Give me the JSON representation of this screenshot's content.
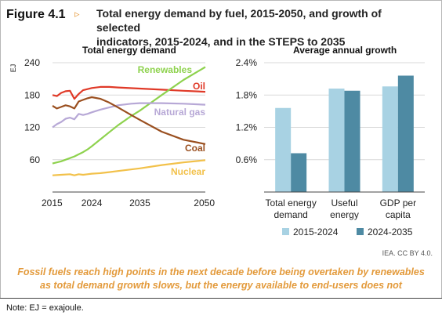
{
  "figure": {
    "label": "Figure 4.1",
    "arrow": "▹",
    "title_line1": "Total energy demand by fuel, 2015-2050, and growth of selected",
    "title_line2": "indicators, 2015-2024, and in the STEPS to 2035"
  },
  "caption": {
    "line1": "Fossil fuels reach high points in the next decade before being overtaken by renewables",
    "line2": "as total demand growth slows, but the energy available to end-users does not"
  },
  "credit": "IEA. CC BY 4.0.",
  "note": "Note: EJ = exajoule.",
  "colors": {
    "oil": "#e03a28",
    "coal": "#9a4f1f",
    "natural_gas": "#b7a8d6",
    "renewables": "#8ed24e",
    "nuclear": "#f2c14a",
    "bar_2015_2024": "#a8d2e3",
    "bar_2024_2035": "#4e8aa3",
    "grid": "#d9d9d9"
  },
  "chart_data": [
    {
      "type": "line",
      "title": "Total energy demand",
      "ylabel": "EJ",
      "xlim": [
        2015,
        2050
      ],
      "ylim": [
        0,
        240
      ],
      "x_ticks": [
        2015,
        2024,
        2035,
        2050
      ],
      "y_ticks": [
        60,
        120,
        180,
        240
      ],
      "grid": true,
      "series": [
        {
          "name": "Oil",
          "color_key": "oil",
          "x": [
            2015,
            2016,
            2017,
            2018,
            2019,
            2020,
            2021,
            2022,
            2023,
            2024,
            2026,
            2028,
            2030,
            2035,
            2040,
            2045,
            2050
          ],
          "y": [
            180,
            178,
            184,
            187,
            188,
            173,
            182,
            189,
            191,
            193,
            195,
            195,
            194,
            192,
            190,
            188,
            186
          ]
        },
        {
          "name": "Renewables",
          "color_key": "renewables",
          "x": [
            2015,
            2017,
            2019,
            2020,
            2021,
            2022,
            2023,
            2024,
            2026,
            2028,
            2030,
            2033,
            2035,
            2040,
            2045,
            2050
          ],
          "y": [
            53,
            57,
            63,
            66,
            70,
            74,
            79,
            85,
            98,
            111,
            124,
            141,
            151,
            180,
            208,
            232
          ]
        },
        {
          "name": "Natural gas",
          "color_key": "natural_gas",
          "x": [
            2015,
            2016,
            2017,
            2018,
            2019,
            2020,
            2021,
            2022,
            2023,
            2024,
            2026,
            2028,
            2030,
            2033,
            2035,
            2040,
            2045,
            2050
          ],
          "y": [
            120,
            126,
            130,
            136,
            138,
            135,
            145,
            143,
            145,
            148,
            153,
            157,
            161,
            164,
            165,
            165,
            164,
            162
          ]
        },
        {
          "name": "Coal",
          "color_key": "coal",
          "x": [
            2015,
            2016,
            2017,
            2018,
            2019,
            2020,
            2021,
            2022,
            2023,
            2024,
            2026,
            2028,
            2030,
            2033,
            2035,
            2040,
            2045,
            2050
          ],
          "y": [
            160,
            155,
            158,
            161,
            159,
            155,
            168,
            171,
            174,
            176,
            173,
            166,
            157,
            143,
            134,
            112,
            97,
            89
          ]
        },
        {
          "name": "Nuclear",
          "color_key": "nuclear",
          "x": [
            2015,
            2017,
            2019,
            2020,
            2021,
            2022,
            2023,
            2024,
            2026,
            2028,
            2030,
            2035,
            2040,
            2045,
            2050
          ],
          "y": [
            31,
            32,
            33,
            31,
            33,
            32,
            33,
            34,
            35,
            37,
            39,
            44,
            50,
            55,
            59
          ]
        }
      ]
    },
    {
      "type": "bar",
      "title": "Average annual growth",
      "categories": [
        [
          "Total energy",
          "demand"
        ],
        [
          "Useful",
          "energy"
        ],
        [
          "GDP per",
          "capita"
        ]
      ],
      "series": [
        {
          "name": "2015-2024",
          "color_key": "bar_2015_2024",
          "values": [
            1.56,
            1.92,
            1.96
          ]
        },
        {
          "name": "2024-2035",
          "color_key": "bar_2024_2035",
          "values": [
            0.72,
            1.88,
            2.16
          ]
        }
      ],
      "ylim": [
        0,
        2.4
      ],
      "y_ticks": [
        "0.6%",
        "1.2%",
        "1.8%",
        "2.4%"
      ],
      "y_tick_values": [
        0.6,
        1.2,
        1.8,
        2.4
      ],
      "grid": true,
      "legend_position": "bottom"
    }
  ]
}
